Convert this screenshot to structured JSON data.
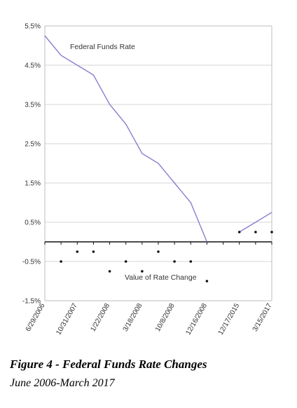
{
  "caption": {
    "title": "Figure 4 - Federal Funds Rate Changes",
    "subtitle": "June 2006-March 2017"
  },
  "chart_data": {
    "type": "line",
    "categories": [
      "6/29/2006",
      "",
      "10/31/2007",
      "",
      "1/22/2008",
      "",
      "3/18/2008",
      "",
      "10/8/2008",
      "",
      "12/16/2008",
      "",
      "12/17/2015",
      "",
      "3/15/2017"
    ],
    "ylim": [
      -1.5,
      5.5
    ],
    "yticks": [
      5.5,
      4.5,
      3.5,
      2.5,
      1.5,
      0.5,
      -0.5,
      -1.5
    ],
    "ytick_labels": [
      "5.5%",
      "4.5%",
      "3.5%",
      "2.5%",
      "1.5%",
      "0.5%",
      "-0.5%",
      "-1.5%"
    ],
    "grid": true,
    "series": [
      {
        "name": "Federal Funds Rate",
        "color": "#8a7fcf",
        "segments": [
          {
            "x": [
              0,
              1,
              2,
              3,
              4,
              5,
              6,
              7,
              8,
              9,
              10
            ],
            "y": [
              5.25,
              4.75,
              4.5,
              4.25,
              3.5,
              3.0,
              2.25,
              2.0,
              1.5,
              1.0,
              0.0
            ]
          },
          {
            "x": [
              12,
              13,
              14
            ],
            "y": [
              0.25,
              0.5,
              0.75
            ]
          }
        ]
      },
      {
        "name": "Value of Rate Change",
        "color": "#111111",
        "type": "scatter",
        "x": [
          1,
          2,
          3,
          4,
          5,
          6,
          7,
          8,
          9,
          10,
          12,
          13,
          14
        ],
        "y": [
          -0.5,
          -0.25,
          -0.25,
          -0.75,
          -0.5,
          -0.75,
          -0.25,
          -0.5,
          -0.5,
          -1.0,
          0.25,
          0.25,
          0.25
        ]
      }
    ]
  }
}
